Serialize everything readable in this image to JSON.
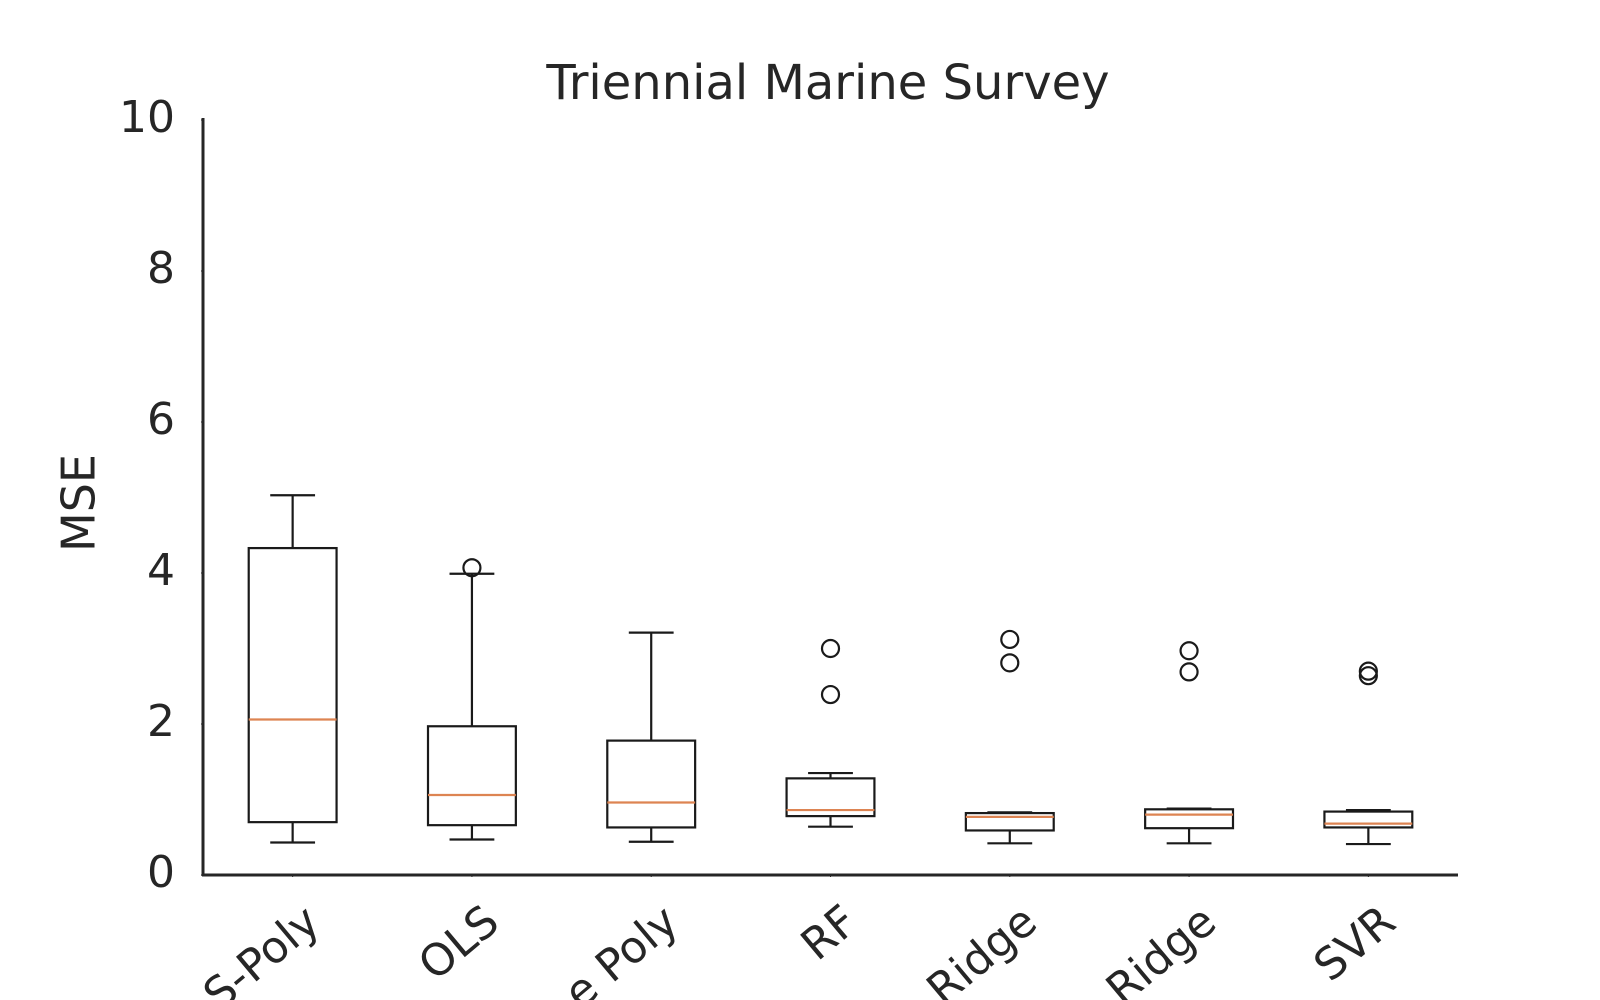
{
  "chart_data": {
    "type": "box",
    "title": "Triennial Marine Survey",
    "y_label": "MSE",
    "categories": [
      "S-Poly",
      "OLS",
      "e Poly",
      "RF",
      "Ridge",
      "Ridge",
      "SVR"
    ],
    "boxes": [
      {
        "whislo": 0.43,
        "q1": 0.7,
        "med": 2.06,
        "q3": 4.33,
        "whishi": 5.03,
        "fliers": []
      },
      {
        "whislo": 0.47,
        "q1": 0.66,
        "med": 1.06,
        "q3": 1.97,
        "whishi": 3.99,
        "fliers": [
          4.07
        ]
      },
      {
        "whislo": 0.44,
        "q1": 0.63,
        "med": 0.96,
        "q3": 1.78,
        "whishi": 3.21,
        "fliers": []
      },
      {
        "whislo": 0.64,
        "q1": 0.78,
        "med": 0.86,
        "q3": 1.28,
        "whishi": 1.35,
        "fliers": [
          3.0,
          2.39
        ]
      },
      {
        "whislo": 0.42,
        "q1": 0.59,
        "med": 0.77,
        "q3": 0.82,
        "whishi": 0.83,
        "fliers": [
          3.12,
          2.81
        ]
      },
      {
        "whislo": 0.42,
        "q1": 0.62,
        "med": 0.8,
        "q3": 0.87,
        "whishi": 0.88,
        "fliers": [
          2.97,
          2.69
        ]
      },
      {
        "whislo": 0.41,
        "q1": 0.63,
        "med": 0.68,
        "q3": 0.84,
        "whishi": 0.86,
        "fliers": [
          2.7,
          2.64
        ]
      }
    ],
    "color": "#1a1a1a",
    "median_color": "#dd8452",
    "ylim": [
      0,
      10
    ],
    "yticks": [
      0,
      2,
      4,
      6,
      8,
      10
    ],
    "grid": false
  }
}
